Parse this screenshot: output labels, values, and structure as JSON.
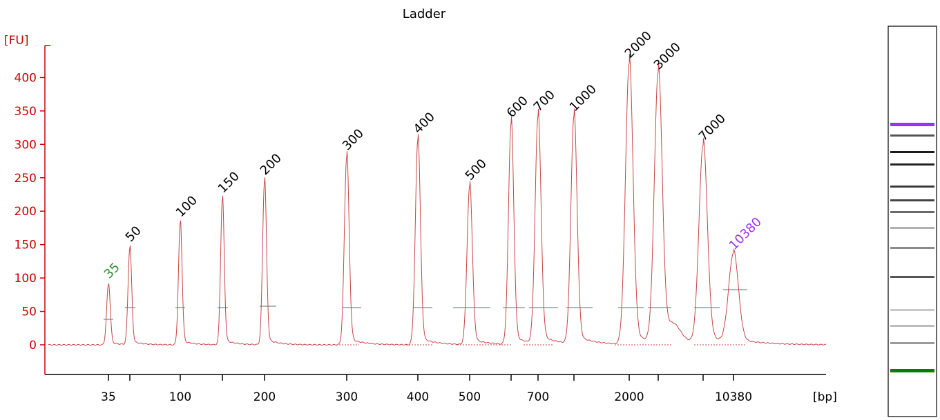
{
  "chart_data": {
    "type": "line",
    "title": "Ladder",
    "ylabel": "[FU]",
    "xlabel": "[bp]",
    "ylim": [
      -40,
      450
    ],
    "yticks": [
      0,
      50,
      100,
      150,
      200,
      250,
      300,
      350,
      400
    ],
    "x_tick_labels": [
      "35",
      "",
      "100",
      "",
      "200",
      "300",
      "400",
      "500",
      "",
      "700",
      "",
      "2000",
      "",
      "",
      "10380"
    ],
    "peaks": [
      {
        "label": "35",
        "height": 90,
        "color": "#2e8b2e"
      },
      {
        "label": "50",
        "height": 145,
        "color": "#000000"
      },
      {
        "label": "100",
        "height": 182,
        "color": "#000000"
      },
      {
        "label": "150",
        "height": 218,
        "color": "#000000"
      },
      {
        "label": "200",
        "height": 245,
        "color": "#000000"
      },
      {
        "label": "300",
        "height": 282,
        "color": "#000000"
      },
      {
        "label": "400",
        "height": 307,
        "color": "#000000"
      },
      {
        "label": "500",
        "height": 237,
        "color": "#000000"
      },
      {
        "label": "600",
        "height": 331,
        "color": "#000000"
      },
      {
        "label": "700",
        "height": 340,
        "color": "#000000"
      },
      {
        "label": "1000",
        "height": 340,
        "color": "#000000"
      },
      {
        "label": "2000",
        "height": 420,
        "color": "#000000"
      },
      {
        "label": "3000",
        "height": 403,
        "color": "#000000"
      },
      {
        "label": "7000",
        "height": 296,
        "color": "#000000"
      },
      {
        "label": "10380",
        "height": 133,
        "color": "#9933ee"
      }
    ],
    "grid": false,
    "legend": "none",
    "colors": {
      "trace": "#c84444",
      "axis_y": "#cc0000",
      "axis_x": "#000000",
      "baseline_marker": "#4a7a6a",
      "lower_marker_band": "#008000",
      "upper_marker_band": "#9933ee"
    }
  }
}
